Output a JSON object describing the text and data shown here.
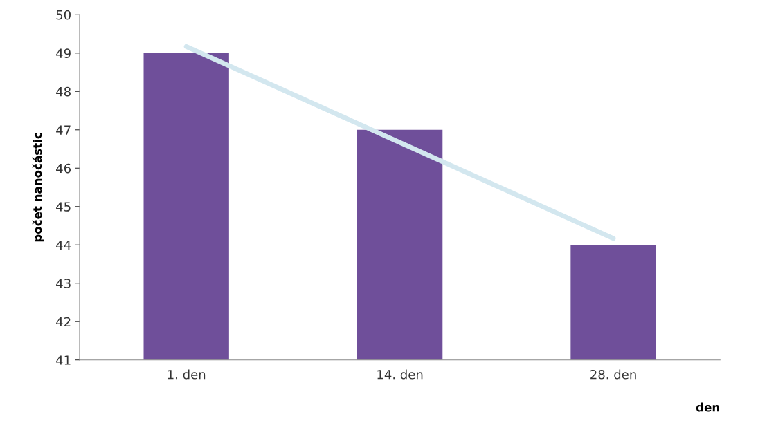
{
  "chart_data": {
    "type": "bar",
    "xlabel": "den",
    "ylabel": "počet nanočástic",
    "categories": [
      "1. den",
      "14. den",
      "28. den"
    ],
    "series": [
      {
        "color": "#6f4f9a",
        "values": [
          49,
          47,
          44
        ]
      },
      {
        "type": "line",
        "color": "#d3e7ef",
        "values": [
          49.17,
          46.67,
          44.17
        ]
      }
    ],
    "ylim": [
      41,
      50
    ],
    "yticks": [
      41,
      42,
      43,
      44,
      45,
      46,
      47,
      48,
      49,
      50
    ],
    "grid": false,
    "legend": false
  }
}
